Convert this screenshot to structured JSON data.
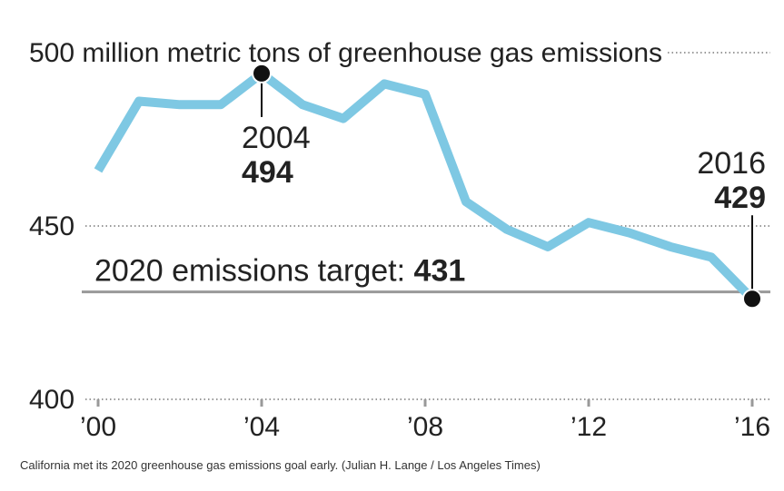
{
  "chart_data": {
    "type": "line",
    "x": [
      2000,
      2001,
      2002,
      2003,
      2004,
      2005,
      2006,
      2007,
      2008,
      2009,
      2010,
      2011,
      2012,
      2013,
      2014,
      2015,
      2016
    ],
    "values": [
      466,
      486,
      485,
      485,
      494,
      485,
      481,
      491,
      488,
      457,
      449,
      444,
      451,
      448,
      444,
      441,
      429
    ],
    "ylim": [
      400,
      500
    ],
    "yticks": [
      {
        "value": 500,
        "label": "500 million metric tons of greenhouse gas emissions"
      },
      {
        "value": 450,
        "label": "450"
      },
      {
        "value": 400,
        "label": "400"
      }
    ],
    "xticks": [
      {
        "value": 2000,
        "label": "’00"
      },
      {
        "value": 2004,
        "label": "’04"
      },
      {
        "value": 2008,
        "label": "’08"
      },
      {
        "value": 2012,
        "label": "’12"
      },
      {
        "value": 2016,
        "label": "’16"
      }
    ],
    "target": {
      "value": 431,
      "label_text": "2020 emissions target: ",
      "label_value": "431"
    },
    "annotations": [
      {
        "x": 2004,
        "value": 494,
        "year_label": "2004",
        "value_label": "494"
      },
      {
        "x": 2016,
        "value": 429,
        "year_label": "2016",
        "value_label": "429"
      }
    ],
    "grid": "dotted horizontal at labeled ticks",
    "colors": {
      "line": "#7ec8e3",
      "text": "#222222",
      "grid": "#999999",
      "target": "#999999",
      "marker": "#111111"
    }
  },
  "caption": "California met its 2020 greenhouse gas emissions goal early. (Julian H. Lange / Los Angeles Times)"
}
